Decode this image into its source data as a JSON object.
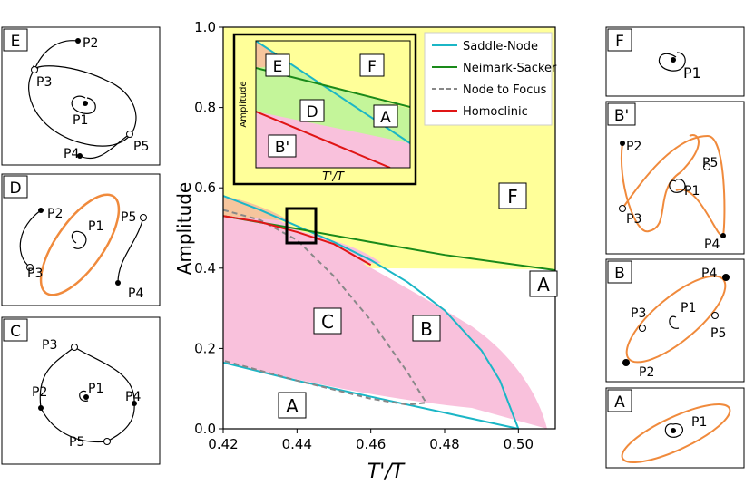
{
  "chart_data": {
    "type": "area",
    "title": "",
    "xlabel": "T'/T",
    "ylabel": "Amplitude",
    "xlim": [
      0.42,
      0.51
    ],
    "ylim": [
      0.0,
      1.0
    ],
    "xticks": [
      "0.42",
      "0.44",
      "0.46",
      "0.48",
      "0.50"
    ],
    "yticks": [
      "0.0",
      "0.2",
      "0.4",
      "0.6",
      "0.8",
      "1.0"
    ],
    "legend": {
      "placement": "top-right",
      "entries": [
        {
          "label": "Saddle-Node",
          "color": "#1bb6c6",
          "style": "solid"
        },
        {
          "label": "Neimark-Sacker",
          "color": "#1a8a1a",
          "style": "solid"
        },
        {
          "label": "Node to Focus",
          "color": "#888888",
          "style": "dashed"
        },
        {
          "label": "Homoclinic",
          "color": "#e01515",
          "style": "solid"
        }
      ]
    },
    "series": [
      {
        "name": "Saddle-Node (upper)",
        "x": [
          0.42,
          0.43,
          0.44,
          0.45,
          0.46,
          0.47,
          0.48,
          0.49,
          0.495,
          0.5
        ],
        "y": [
          0.58,
          0.545,
          0.505,
          0.465,
          0.42,
          0.365,
          0.295,
          0.195,
          0.12,
          0.0
        ]
      },
      {
        "name": "Saddle-Node (lower)",
        "x": [
          0.42,
          0.44,
          0.46,
          0.48,
          0.5
        ],
        "y": [
          0.165,
          0.12,
          0.08,
          0.04,
          0.0
        ]
      },
      {
        "name": "Neimark-Sacker",
        "x": [
          0.42,
          0.44,
          0.46,
          0.48,
          0.51
        ],
        "y": [
          0.53,
          0.498,
          0.465,
          0.433,
          0.395
        ]
      },
      {
        "name": "Node to Focus",
        "x": [
          0.42,
          0.43,
          0.44,
          0.45,
          0.46,
          0.47,
          0.475,
          0.47,
          0.46,
          0.44,
          0.42
        ],
        "y": [
          0.545,
          0.52,
          0.47,
          0.38,
          0.27,
          0.14,
          0.065,
          0.06,
          0.075,
          0.12,
          0.17
        ]
      },
      {
        "name": "Homoclinic",
        "x": [
          0.42,
          0.43,
          0.44,
          0.45,
          0.46
        ],
        "y": [
          0.53,
          0.515,
          0.49,
          0.46,
          0.408
        ]
      }
    ],
    "regions": [
      "A",
      "B",
      "C",
      "F",
      "A"
    ],
    "highlight_box": {
      "x": [
        0.4365,
        0.442
      ],
      "y": [
        0.47,
        0.55
      ]
    },
    "inset": {
      "xlabel": "T'/T",
      "ylabel": "Amplitude",
      "regions": [
        "E",
        "F",
        "D",
        "A",
        "B'"
      ]
    }
  },
  "panels": {
    "E": {
      "label": "E",
      "points": [
        "P2",
        "P3",
        "P1",
        "P4",
        "P5"
      ]
    },
    "D": {
      "label": "D",
      "points": [
        "P2",
        "P1",
        "P5",
        "P3",
        "P4"
      ]
    },
    "C": {
      "label": "C",
      "points": [
        "P3",
        "P2",
        "P1",
        "P4",
        "P5"
      ]
    },
    "F": {
      "label": "F",
      "points": [
        "P1"
      ]
    },
    "Bp": {
      "label": "B'",
      "points": [
        "P2",
        "P5",
        "P1",
        "P3",
        "P4"
      ]
    },
    "B": {
      "label": "B",
      "points": [
        "P4",
        "P3",
        "P1",
        "P5",
        "P2"
      ]
    },
    "A": {
      "label": "A",
      "points": [
        "P1"
      ]
    }
  },
  "colors": {
    "yellow": "#ffff99",
    "pink": "#f9c1dc",
    "orange": "#f6c59d",
    "green": "#c4f59a",
    "cyan": "#1bb6c6",
    "darkgreen": "#1a8a1a",
    "red": "#e01515",
    "gray": "#888888",
    "orbit": "#f08a3c"
  }
}
